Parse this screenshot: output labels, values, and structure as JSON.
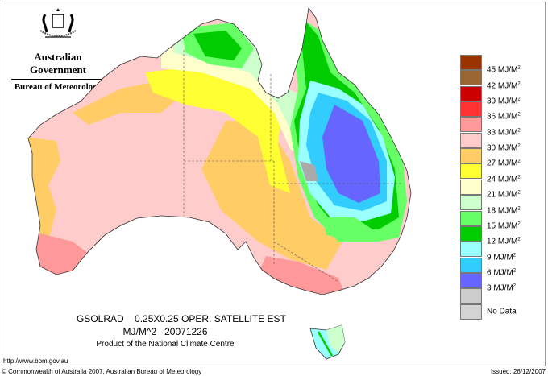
{
  "header": {
    "government": "Australian Government",
    "bureau": "Bureau of Meteorology",
    "logo": "commonwealth-coat-of-arms"
  },
  "map": {
    "title_line1": "GSOLRAD    0.25X0.25 OPER. SATELLITE EST",
    "title_line2": "MJ/M^2   20071226",
    "credit": "Product of the National Climate Centre"
  },
  "legend": {
    "items": [
      {
        "value": "45",
        "unit": "MJ/M",
        "sup": "2",
        "color": "#993300"
      },
      {
        "value": "42",
        "unit": "MJ/M",
        "sup": "2",
        "color": "#996633"
      },
      {
        "value": "39",
        "unit": "MJ/M",
        "sup": "2",
        "color": "#cc0000"
      },
      {
        "value": "36",
        "unit": "MJ/M",
        "sup": "2",
        "color": "#ff3333"
      },
      {
        "value": "33",
        "unit": "MJ/M",
        "sup": "2",
        "color": "#ff9999"
      },
      {
        "value": "30",
        "unit": "MJ/M",
        "sup": "2",
        "color": "#ffcccc"
      },
      {
        "value": "27",
        "unit": "MJ/M",
        "sup": "2",
        "color": "#ffcc66"
      },
      {
        "value": "24",
        "unit": "MJ/M",
        "sup": "2",
        "color": "#ffff33"
      },
      {
        "value": "21",
        "unit": "MJ/M",
        "sup": "2",
        "color": "#ffffcc"
      },
      {
        "value": "18",
        "unit": "MJ/M",
        "sup": "2",
        "color": "#ccffcc"
      },
      {
        "value": "15",
        "unit": "MJ/M",
        "sup": "2",
        "color": "#66ff66"
      },
      {
        "value": "12",
        "unit": "MJ/M",
        "sup": "2",
        "color": "#00cc00"
      },
      {
        "value": "9",
        "unit": "MJ/M",
        "sup": "2",
        "color": "#99ffff"
      },
      {
        "value": "6",
        "unit": "MJ/M",
        "sup": "2",
        "color": "#33ccff"
      },
      {
        "value": "3",
        "unit": "MJ/M",
        "sup": "2",
        "color": "#6666ff"
      },
      {
        "value": "",
        "unit": "",
        "sup": "",
        "color": "#cccccc"
      }
    ],
    "no_data": {
      "label": "No Data",
      "color": "#d4d4d4"
    }
  },
  "footer": {
    "url": "http://www.bom.gov.au",
    "copyright": "© Commonwealth of Australia 2007, Australian Bureau of Meteorology",
    "issued": "Issued: 26/12/2007"
  }
}
